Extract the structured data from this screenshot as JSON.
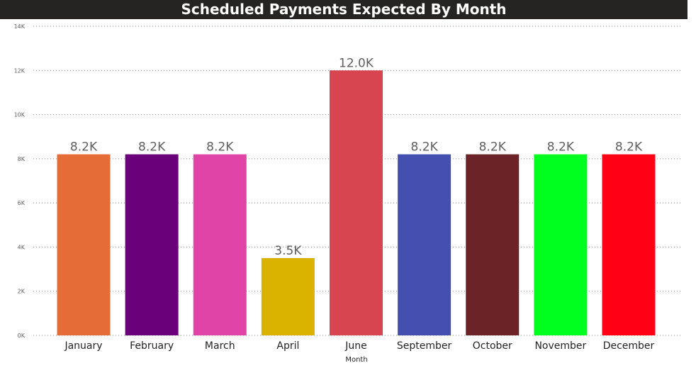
{
  "title": "Scheduled Payments Expected By Month",
  "chart_data": {
    "type": "bar",
    "title": "Scheduled Payments Expected By Month",
    "xlabel": "Month",
    "ylabel": "",
    "ylim": [
      0,
      14000
    ],
    "yticks": [
      0,
      2000,
      4000,
      6000,
      8000,
      10000,
      12000,
      14000
    ],
    "ytick_labels": [
      "0K",
      "2K",
      "4K",
      "6K",
      "8K",
      "10K",
      "12K",
      "14K"
    ],
    "grid": true,
    "categories": [
      "January",
      "February",
      "March",
      "April",
      "June",
      "September",
      "October",
      "November",
      "December"
    ],
    "values": [
      8200,
      8200,
      8200,
      3500,
      12000,
      8200,
      8200,
      8200,
      8200
    ],
    "data_labels": [
      "8.2K",
      "8.2K",
      "8.2K",
      "3.5K",
      "12.0K",
      "8.2K",
      "8.2K",
      "8.2K",
      "8.2K"
    ],
    "colors": [
      "#E66C37",
      "#6B007B",
      "#E044A7",
      "#D9B300",
      "#D64550",
      "#4350AF",
      "#6B2328",
      "#00FF1E",
      "#FF0014"
    ]
  }
}
